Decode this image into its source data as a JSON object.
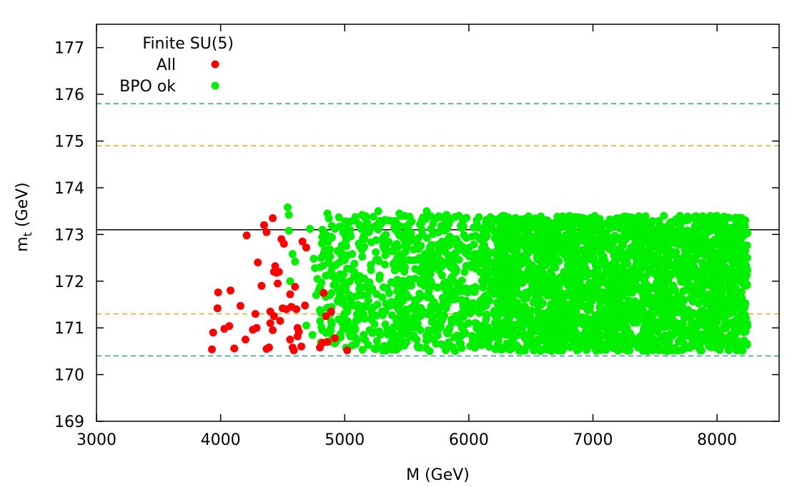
{
  "chart_data": {
    "type": "scatter",
    "title": "Finite SU(5)",
    "xlabel": "M (GeV)",
    "ylabel_main": "m",
    "ylabel_sub": "t",
    "ylabel_suffix": " (GeV)",
    "xlim": [
      3000,
      8500
    ],
    "ylim": [
      169,
      177.5
    ],
    "xticks": [
      3000,
      4000,
      5000,
      6000,
      7000,
      8000
    ],
    "yticks": [
      169,
      170,
      171,
      172,
      173,
      174,
      175,
      176,
      177
    ],
    "grid": false,
    "legend_position": "top-left",
    "reference_lines": [
      {
        "y": 173.1,
        "style": "solid",
        "color": "#000000"
      },
      {
        "y": 175.8,
        "style": "dashed",
        "color": "#1a9e77"
      },
      {
        "y": 170.4,
        "style": "dashed",
        "color": "#1a9e77"
      },
      {
        "y": 174.9,
        "style": "dashed",
        "color": "#e6a000"
      },
      {
        "y": 171.3,
        "style": "dashed",
        "color": "#e6a000"
      }
    ],
    "series": [
      {
        "name": "All",
        "color": "#ff0000",
        "points": [
          [
            3930,
            170.54
          ],
          [
            3940,
            170.9
          ],
          [
            3975,
            171.42
          ],
          [
            3980,
            171.76
          ],
          [
            4030,
            170.98
          ],
          [
            4070,
            171.04
          ],
          [
            4080,
            171.8
          ],
          [
            4110,
            170.56
          ],
          [
            4160,
            171.47
          ],
          [
            4200,
            170.75
          ],
          [
            4210,
            172.98
          ],
          [
            4260,
            170.96
          ],
          [
            4280,
            171.3
          ],
          [
            4290,
            171
          ],
          [
            4300,
            172.4
          ],
          [
            4330,
            171.9
          ],
          [
            4350,
            173.2
          ],
          [
            4370,
            170.55
          ],
          [
            4370,
            173.05
          ],
          [
            4390,
            170.58
          ],
          [
            4400,
            171.35
          ],
          [
            4400,
            171.1
          ],
          [
            4420,
            170.95
          ],
          [
            4420,
            173.35
          ],
          [
            4430,
            171.25
          ],
          [
            4430,
            172.2
          ],
          [
            4440,
            172.32
          ],
          [
            4450,
            172.18
          ],
          [
            4460,
            171.95
          ],
          [
            4470,
            172.2
          ],
          [
            4480,
            171.15
          ],
          [
            4490,
            172.9
          ],
          [
            4500,
            171.42
          ],
          [
            4510,
            172.8
          ],
          [
            4530,
            171.4
          ],
          [
            4560,
            170.75
          ],
          [
            4560,
            171.72
          ],
          [
            4570,
            171.45
          ],
          [
            4580,
            170.58
          ],
          [
            4590,
            170.52
          ],
          [
            4600,
            171.88
          ],
          [
            4610,
            171.4
          ],
          [
            4620,
            171
          ],
          [
            4620,
            170.82
          ],
          [
            4630,
            170.92
          ],
          [
            4650,
            170.6
          ],
          [
            4660,
            172.85
          ],
          [
            4680,
            171.48
          ],
          [
            4690,
            172.72
          ],
          [
            4800,
            170.58
          ],
          [
            4820,
            170.68
          ],
          [
            4830,
            171.75
          ],
          [
            4850,
            171.25
          ],
          [
            4860,
            170.7
          ],
          [
            4890,
            171.35
          ],
          [
            4920,
            170.78
          ],
          [
            5020,
            170.52
          ]
        ]
      },
      {
        "name": "BPO ok",
        "color": "#00f000",
        "region": {
          "x_min": 4400,
          "x_max": 8250,
          "y_min": 170.5,
          "y_max": 173.5,
          "approx_count": 3200
        },
        "points": [
          [
            4540,
            173.58
          ],
          [
            4550,
            173.42
          ],
          [
            4550,
            173.08
          ],
          [
            4560,
            172.0
          ],
          [
            4580,
            172.58
          ],
          [
            4600,
            172.42
          ],
          [
            4690,
            171.05
          ],
          [
            4720,
            173.12
          ],
          [
            4740,
            170.85
          ],
          [
            4750,
            172.48
          ],
          [
            4760,
            172.28
          ],
          [
            4770,
            171.7
          ],
          [
            4780,
            172.05
          ],
          [
            4790,
            171.8
          ],
          [
            4800,
            171.38
          ],
          [
            4810,
            172.5
          ],
          [
            4820,
            173.1
          ],
          [
            4840,
            172.68
          ],
          [
            4850,
            172.12
          ],
          [
            4860,
            173.45
          ],
          [
            4870,
            172.4
          ],
          [
            4880,
            171.7
          ],
          [
            4890,
            172.95
          ],
          [
            4900,
            170.78
          ],
          [
            4900,
            172.3
          ],
          [
            4920,
            173.12
          ],
          [
            4930,
            171.9
          ],
          [
            4950,
            171.62
          ],
          [
            4960,
            172.6
          ],
          [
            4980,
            171.1
          ],
          [
            5000,
            172.45
          ],
          [
            5010,
            171.8
          ],
          [
            5020,
            172.95
          ],
          [
            5030,
            170.98
          ],
          [
            5040,
            171.7
          ],
          [
            5060,
            172.58
          ],
          [
            5080,
            172.18
          ],
          [
            5090,
            170.78
          ],
          [
            5100,
            171.45
          ],
          [
            5110,
            172.0
          ],
          [
            5120,
            172.75
          ],
          [
            5140,
            173.42
          ],
          [
            5150,
            171.3
          ],
          [
            5160,
            172.9
          ],
          [
            5180,
            173.25
          ],
          [
            5190,
            171.58
          ],
          [
            5200,
            170.95
          ],
          [
            5210,
            172.35
          ],
          [
            5230,
            173.38
          ],
          [
            5240,
            171.08
          ],
          [
            5250,
            172.62
          ],
          [
            5260,
            170.72
          ],
          [
            5270,
            173.5
          ],
          [
            5280,
            172.05
          ],
          [
            5300,
            171.35
          ],
          [
            5310,
            170.6
          ],
          [
            5320,
            172.9
          ],
          [
            5340,
            171.85
          ],
          [
            5360,
            173.3
          ],
          [
            5380,
            170.85
          ],
          [
            5400,
            172.4
          ],
          [
            5420,
            171.12
          ],
          [
            5440,
            173.45
          ],
          [
            5460,
            172.0
          ],
          [
            5480,
            170.62
          ],
          [
            5500,
            171.7
          ],
          [
            5520,
            172.85
          ],
          [
            5540,
            173.28
          ],
          [
            5560,
            171.4
          ],
          [
            5580,
            170.75
          ],
          [
            5600,
            172.5
          ],
          [
            5620,
            173.1
          ],
          [
            5640,
            171.9
          ],
          [
            5660,
            173.5
          ],
          [
            5680,
            170.9
          ],
          [
            5700,
            172.25
          ],
          [
            5720,
            171.55
          ],
          [
            5740,
            173.35
          ],
          [
            5760,
            172.7
          ],
          [
            5780,
            170.65
          ],
          [
            5800,
            171.95
          ],
          [
            5820,
            173.42
          ],
          [
            5840,
            172.35
          ],
          [
            5860,
            171.18
          ],
          [
            5880,
            170.8
          ],
          [
            5900,
            172.9
          ],
          [
            5920,
            173.4
          ],
          [
            5940,
            171.6
          ]
        ]
      }
    ]
  }
}
